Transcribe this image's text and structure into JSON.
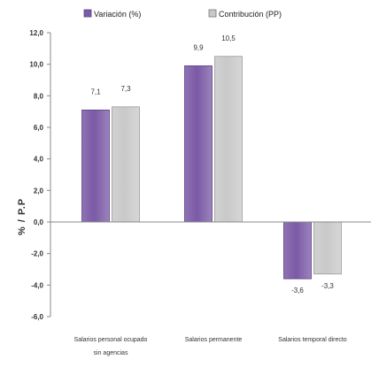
{
  "chart_data": {
    "type": "bar",
    "categories": [
      [
        "Salarios personal ocupado",
        "sin agencias"
      ],
      [
        "Salarios permanente"
      ],
      [
        "Salarios temporal directo"
      ]
    ],
    "series": [
      {
        "name": "Variación (%)",
        "values": [
          7.1,
          9.9,
          -3.6
        ],
        "labels": [
          "7,1",
          "9,9",
          "-3,6"
        ],
        "color": "#7b5aa6"
      },
      {
        "name": "Contribución (PP)",
        "values": [
          7.3,
          10.5,
          -3.3
        ],
        "labels": [
          "7,3",
          "10,5",
          "-3,3"
        ],
        "color": "#c9c9c9"
      }
    ],
    "ylabel": "% / P.P",
    "ylim": [
      -6,
      12
    ],
    "yticks": [
      "-6,0",
      "-4,0",
      "-2,0",
      "0,0",
      "2,0",
      "4,0",
      "6,0",
      "8,0",
      "10,0",
      "12,0"
    ],
    "legend_position": "top",
    "grid": false
  }
}
